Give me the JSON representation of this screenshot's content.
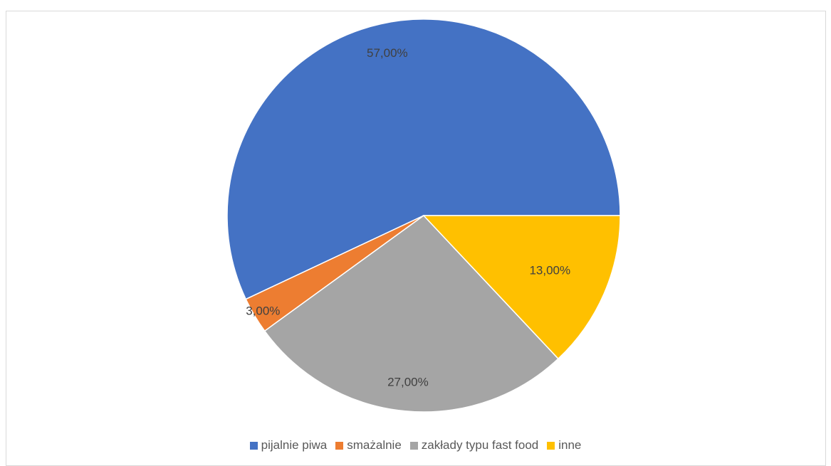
{
  "chart_data": {
    "type": "pie",
    "title": "",
    "categories": [
      "pijalnie piwa",
      "smażalnie",
      "zakłady typu fast food",
      "inne"
    ],
    "values": [
      57,
      3,
      27,
      13
    ],
    "data_labels": [
      "57,00%",
      "3,00%",
      "27,00%",
      "13,00%"
    ],
    "colors": [
      "#4472C4",
      "#ED7D31",
      "#A5A5A5",
      "#FFC000"
    ],
    "legend_position": "bottom",
    "start": "3 o'clock",
    "direction": "counter-clockwise"
  }
}
